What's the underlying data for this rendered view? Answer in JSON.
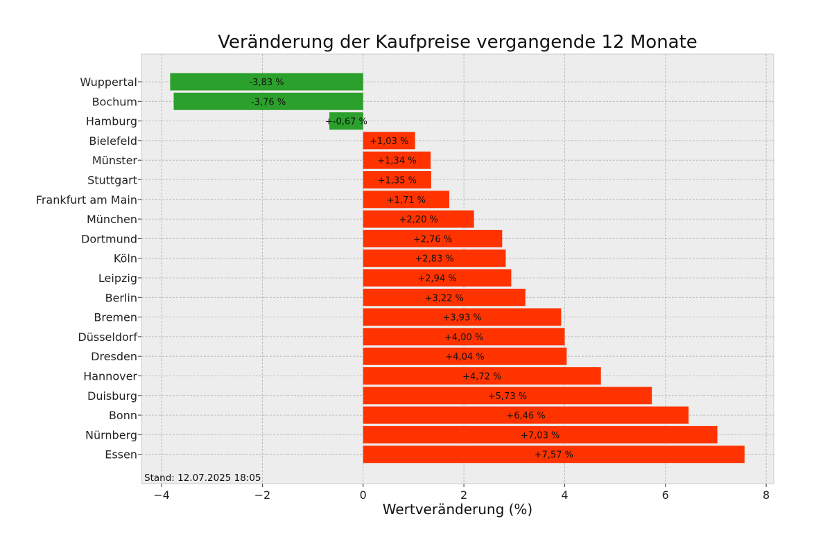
{
  "chart_data": {
    "type": "bar",
    "orientation": "horizontal",
    "title": "Veränderung der Kaufpreise vergangende 12 Monate",
    "xlabel": "Wertveränderung (%)",
    "ylabel": "",
    "xlim": [
      -4.4,
      8.15
    ],
    "xticks": [
      -4,
      -2,
      0,
      2,
      4,
      6,
      8
    ],
    "xtick_labels": [
      "−4",
      "−2",
      "0",
      "2",
      "4",
      "6",
      "8"
    ],
    "grid": true,
    "categories": [
      "Wuppertal",
      "Bochum",
      "Hamburg",
      "Bielefeld",
      "Münster",
      "Stuttgart",
      "Frankfurt am Main",
      "München",
      "Dortmund",
      "Köln",
      "Leipzig",
      "Berlin",
      "Bremen",
      "Düsseldorf",
      "Dresden",
      "Hannover",
      "Duisburg",
      "Bonn",
      "Nürnberg",
      "Essen"
    ],
    "values": [
      -3.83,
      -3.76,
      -0.67,
      1.03,
      1.34,
      1.35,
      1.71,
      2.2,
      2.76,
      2.83,
      2.94,
      3.22,
      3.93,
      4.0,
      4.04,
      4.72,
      5.73,
      6.46,
      7.03,
      7.57
    ],
    "data_labels": [
      "-3,83 %",
      "-3,76 %",
      "+-0,67 %",
      "+1,03 %",
      "+1,34 %",
      "+1,35 %",
      "+1,71 %",
      "+2,20 %",
      "+2,76 %",
      "+2,83 %",
      "+2,94 %",
      "+3,22 %",
      "+3,93 %",
      "+4,00 %",
      "+4,04 %",
      "+4,72 %",
      "+5,73 %",
      "+6,46 %",
      "+7,03 %",
      "+7,57 %"
    ],
    "colors": {
      "negative": "#2ca02c",
      "positive": "#ff3300",
      "plot_background": "#ededed",
      "grid": "#b0b0b0"
    },
    "footnote": "Stand: 12.07.2025 18:05"
  }
}
